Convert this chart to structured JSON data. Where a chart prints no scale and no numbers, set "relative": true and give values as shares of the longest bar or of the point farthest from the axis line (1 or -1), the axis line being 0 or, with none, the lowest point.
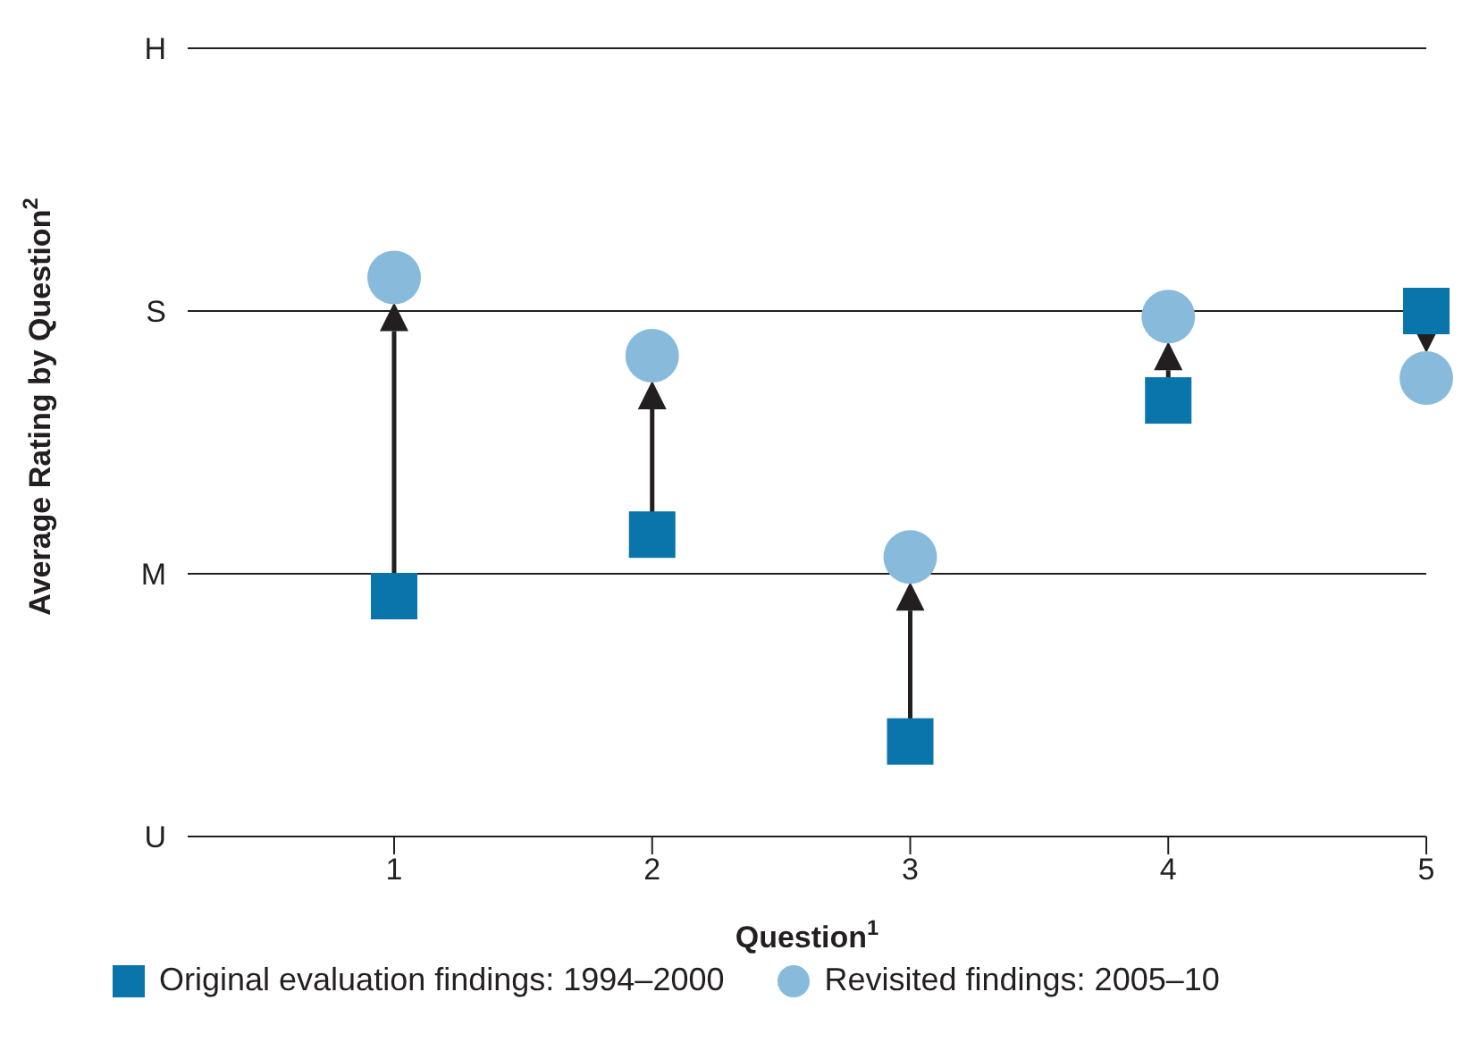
{
  "chart_data": {
    "type": "scatter",
    "xlabel": "Question$^{1}$",
    "ylabel": "Average Rating by Question$^{2}$",
    "relative": true,
    "x": [
      1,
      2,
      3,
      4,
      5
    ],
    "series": [
      {
        "name": "Original evaluation findings: 1994–2000",
        "color": "#0a75aa",
        "marker": "square",
        "values": [
          0.43,
          0.54,
          0.17,
          0.78,
          0.94
        ]
      },
      {
        "name": "Revisited findings: 2005–10",
        "color": "#88bbdb",
        "marker": "circle",
        "values": [
          1,
          0.86,
          0.5,
          0.93,
          0.82
        ]
      }
    ],
    "xlim": [
      0.2,
      5
    ],
    "xticks": [
      1,
      2,
      3,
      4,
      5
    ],
    "ref_lines": [
      {
        "axis": "y",
        "value": 0,
        "label": "U"
      },
      {
        "axis": "y",
        "value": 0.47,
        "label": "M"
      },
      {
        "axis": "y",
        "value": 0.94,
        "label": "S"
      },
      {
        "axis": "y",
        "value": 1.41,
        "label": "H"
      }
    ],
    "legend": "bottom"
  }
}
